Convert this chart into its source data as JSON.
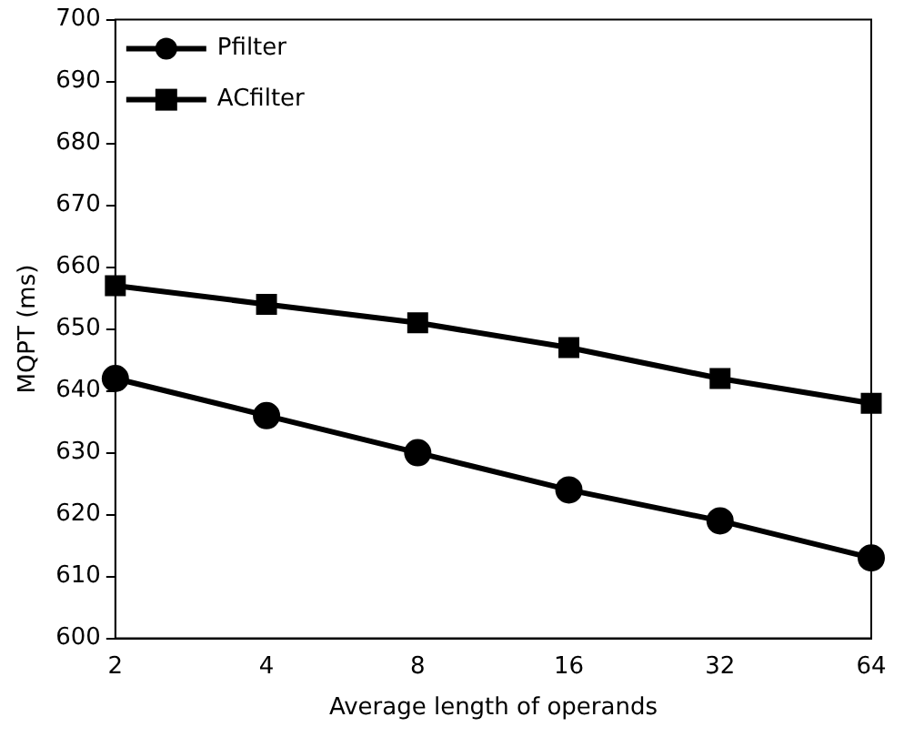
{
  "chart_data": {
    "type": "line",
    "xlabel": "Average length of operands",
    "ylabel": "MQPT (ms)",
    "categories": [
      "2",
      "4",
      "8",
      "16",
      "32",
      "64"
    ],
    "series": [
      {
        "name": "Pfilter",
        "color": "#000000",
        "marker": "circle",
        "values": [
          642,
          636,
          630,
          624,
          619,
          613
        ]
      },
      {
        "name": "ACfilter",
        "color": "#000000",
        "marker": "square",
        "values": [
          657,
          654,
          651,
          647,
          642,
          638
        ]
      }
    ],
    "ylim": [
      600,
      700
    ],
    "yticks": [
      600,
      610,
      620,
      630,
      640,
      650,
      660,
      670,
      680,
      690,
      700
    ],
    "grid": false,
    "legend": "top left",
    "line_style": "solid"
  }
}
